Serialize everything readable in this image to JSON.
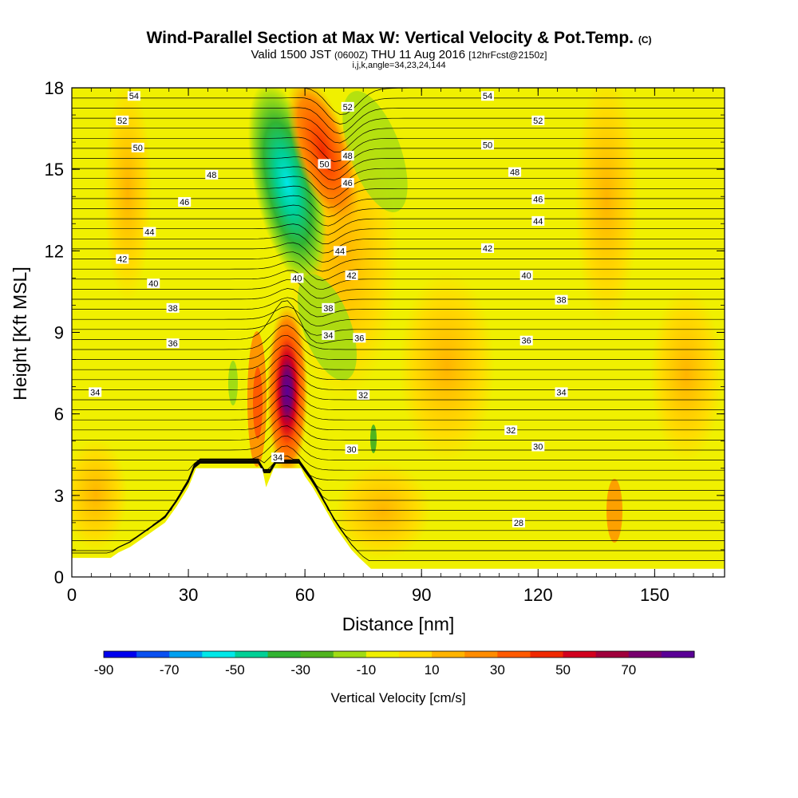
{
  "header": {
    "title": "Wind-Parallel Section at Max W: Vertical Velocity & Pot.Temp.",
    "title_unit": "(C)",
    "valid_prefix": "Valid 1500 JST",
    "valid_utc": "(0600Z)",
    "valid_date": "THU 11 Aug 2016",
    "forecast": "[12hrFcst@2150z]",
    "indices": "i,j,k,angle=34,23,24,144"
  },
  "chart_data": {
    "type": "heatmap",
    "xlabel": "Distance [nm]",
    "ylabel": "Height [Kft MSL]",
    "xlim": [
      0,
      168
    ],
    "ylim": [
      0,
      18
    ],
    "x_ticks": [
      0,
      30,
      60,
      90,
      120,
      150
    ],
    "y_ticks": [
      0,
      3,
      6,
      9,
      12,
      15,
      18
    ],
    "colorbar": {
      "title": "Vertical Velocity [cm/s]",
      "tick_labels": [
        -90,
        -70,
        -50,
        -30,
        -10,
        10,
        30,
        50,
        70
      ],
      "levels": [
        -90,
        -80,
        -70,
        -60,
        -50,
        -40,
        -30,
        -20,
        -10,
        0,
        10,
        20,
        30,
        40,
        50,
        60,
        70,
        80
      ],
      "colors": [
        "#0000ee",
        "#0a50f0",
        "#00a0f0",
        "#00e8e8",
        "#00d096",
        "#32b432",
        "#50b41e",
        "#a0dc14",
        "#f0f000",
        "#ffdc00",
        "#ffb400",
        "#ff8c00",
        "#ff5a00",
        "#f02800",
        "#d2001e",
        "#a0003c",
        "#78006e",
        "#5a0096"
      ]
    },
    "terrain_kft": [
      [
        0,
        0.7
      ],
      [
        10,
        0.7
      ],
      [
        12,
        0.9
      ],
      [
        15,
        1.1
      ],
      [
        18,
        1.4
      ],
      [
        21,
        1.7
      ],
      [
        24,
        2.0
      ],
      [
        27,
        2.6
      ],
      [
        30,
        3.3
      ],
      [
        32,
        4.0
      ],
      [
        49,
        4.0
      ],
      [
        50,
        3.3
      ],
      [
        52,
        4.0
      ],
      [
        59,
        4.0
      ],
      [
        60,
        3.7
      ],
      [
        62,
        3.3
      ],
      [
        64,
        2.8
      ],
      [
        66,
        2.3
      ],
      [
        68,
        1.8
      ],
      [
        70,
        1.4
      ],
      [
        72,
        1.0
      ],
      [
        74,
        0.7
      ],
      [
        77,
        0.3
      ],
      [
        168,
        0.3
      ]
    ],
    "theta_contour_labels": [
      {
        "x": 16,
        "y": 17.7,
        "text": "54"
      },
      {
        "x": 13,
        "y": 16.8,
        "text": "52"
      },
      {
        "x": 17,
        "y": 15.8,
        "text": "50"
      },
      {
        "x": 36,
        "y": 14.8,
        "text": "48"
      },
      {
        "x": 29,
        "y": 13.8,
        "text": "46"
      },
      {
        "x": 20,
        "y": 12.7,
        "text": "44"
      },
      {
        "x": 13,
        "y": 11.7,
        "text": "42"
      },
      {
        "x": 21,
        "y": 10.8,
        "text": "40"
      },
      {
        "x": 26,
        "y": 9.9,
        "text": "38"
      },
      {
        "x": 26,
        "y": 8.6,
        "text": "36"
      },
      {
        "x": 6,
        "y": 6.8,
        "text": "34"
      },
      {
        "x": 71,
        "y": 17.3,
        "text": "52"
      },
      {
        "x": 65,
        "y": 15.2,
        "text": "50"
      },
      {
        "x": 71,
        "y": 15.5,
        "text": "48"
      },
      {
        "x": 71,
        "y": 14.5,
        "text": "46"
      },
      {
        "x": 69,
        "y": 12.0,
        "text": "44"
      },
      {
        "x": 72,
        "y": 11.1,
        "text": "42"
      },
      {
        "x": 58,
        "y": 11.0,
        "text": "40"
      },
      {
        "x": 66,
        "y": 9.9,
        "text": "38"
      },
      {
        "x": 66,
        "y": 8.9,
        "text": "34"
      },
      {
        "x": 74,
        "y": 8.8,
        "text": "36"
      },
      {
        "x": 53,
        "y": 4.4,
        "text": "34"
      },
      {
        "x": 72,
        "y": 4.7,
        "text": "30"
      },
      {
        "x": 75,
        "y": 6.7,
        "text": "32"
      },
      {
        "x": 107,
        "y": 17.7,
        "text": "54"
      },
      {
        "x": 120,
        "y": 16.8,
        "text": "52"
      },
      {
        "x": 107,
        "y": 15.9,
        "text": "50"
      },
      {
        "x": 114,
        "y": 14.9,
        "text": "48"
      },
      {
        "x": 120,
        "y": 13.9,
        "text": "46"
      },
      {
        "x": 120,
        "y": 13.1,
        "text": "44"
      },
      {
        "x": 107,
        "y": 12.1,
        "text": "42"
      },
      {
        "x": 117,
        "y": 11.1,
        "text": "40"
      },
      {
        "x": 126,
        "y": 10.2,
        "text": "38"
      },
      {
        "x": 117,
        "y": 8.7,
        "text": "36"
      },
      {
        "x": 126,
        "y": 6.8,
        "text": "34"
      },
      {
        "x": 113,
        "y": 5.4,
        "text": "32"
      },
      {
        "x": 120,
        "y": 4.8,
        "text": "30"
      },
      {
        "x": 115,
        "y": 2.0,
        "text": "28"
      }
    ]
  }
}
